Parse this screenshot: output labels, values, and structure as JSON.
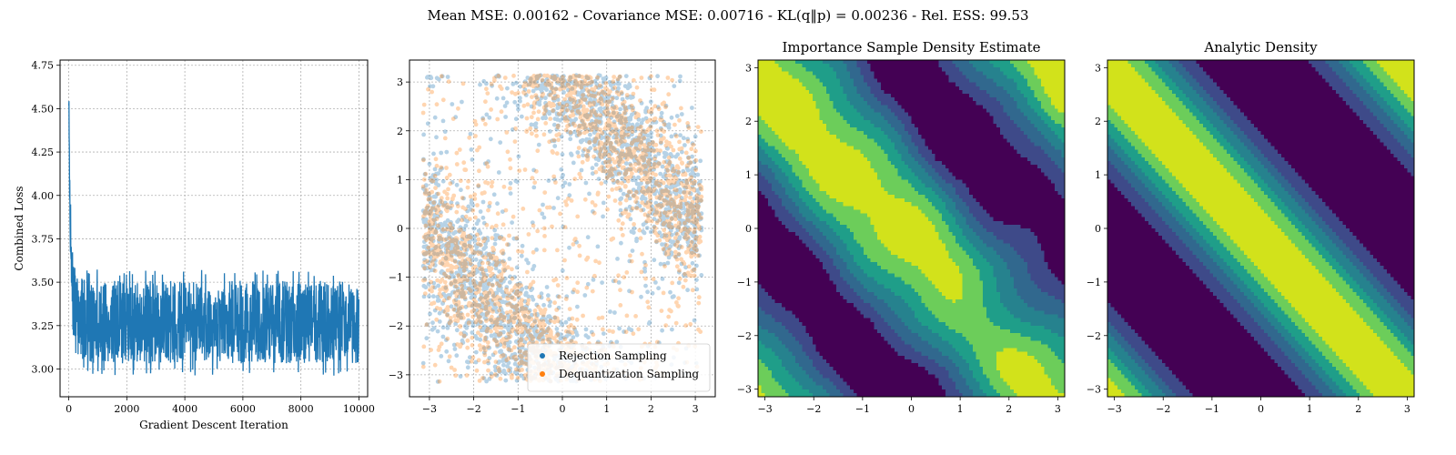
{
  "figure": {
    "suptitle": "Mean MSE: 0.00162 - Covariance MSE: 0.00716 - KL(q‖p) = 0.00236 - Rel. ESS: 99.53"
  },
  "colors": {
    "loss_line": "#1f77b4",
    "rejection": "#1f77b4",
    "dequantization": "#ff7f0e",
    "viridis": [
      "#440154",
      "#3e4a89",
      "#31688e",
      "#26828e",
      "#1f9e89",
      "#6ccd5a",
      "#d2e21b"
    ]
  },
  "chart_data": [
    {
      "type": "line",
      "title": "",
      "xlabel": "Gradient Descent Iteration",
      "ylabel": "Combined Loss",
      "xlim": [
        -300,
        10300
      ],
      "ylim": [
        2.84,
        4.78
      ],
      "xticks": [
        0,
        2000,
        4000,
        6000,
        8000,
        10000
      ],
      "xtick_labels": [
        "0",
        "2000",
        "4000",
        "6000",
        "8000",
        "10000"
      ],
      "yticks": [
        3.0,
        3.25,
        3.5,
        3.75,
        4.0,
        4.25,
        4.5,
        4.75
      ],
      "ytick_labels": [
        "3.00",
        "3.25",
        "3.50",
        "3.75",
        "4.00",
        "4.25",
        "4.50",
        "4.75"
      ],
      "grid": true,
      "series": [
        {
          "x": [
            0,
            20,
            40,
            60,
            80,
            100,
            150,
            200,
            300,
            500,
            1000,
            2000,
            3000,
            4000,
            5000,
            6000,
            7000,
            8000,
            9000,
            10000
          ],
          "y": [
            4.58,
            4.2,
            3.95,
            3.75,
            3.6,
            3.5,
            3.4,
            3.35,
            3.3,
            3.28,
            3.27,
            3.27,
            3.27,
            3.27,
            3.27,
            3.27,
            3.27,
            3.27,
            3.27,
            3.27
          ],
          "noise_band": [
            3.0,
            3.56
          ]
        }
      ]
    },
    {
      "type": "scatter",
      "title": "",
      "xlabel": "",
      "ylabel": "",
      "xlim": [
        -3.45,
        3.45
      ],
      "ylim": [
        -3.45,
        3.45
      ],
      "xticks": [
        -3,
        -2,
        -1,
        0,
        1,
        2,
        3
      ],
      "yticks": [
        -3,
        -2,
        -1,
        0,
        1,
        2,
        3
      ],
      "tick_labels": [
        "−3",
        "−2",
        "−1",
        "0",
        "1",
        "2",
        "3"
      ],
      "grid": true,
      "legend_position": "lower-right",
      "series": [
        {
          "name": "Rejection Sampling",
          "sample_count": 5000
        },
        {
          "name": "Dequantization Sampling",
          "sample_count": 5000
        }
      ]
    },
    {
      "type": "heatmap",
      "title": "Importance Sample Density Estimate",
      "xlim": [
        -3.14159,
        3.14159
      ],
      "ylim": [
        -3.14159,
        3.14159
      ],
      "xticks": [
        -3,
        -2,
        -1,
        0,
        1,
        2,
        3
      ],
      "yticks": [
        -3,
        -2,
        -1,
        0,
        1,
        2,
        3
      ],
      "tick_labels": [
        "−3",
        "−2",
        "−1",
        "0",
        "1",
        "2",
        "3"
      ]
    },
    {
      "type": "heatmap",
      "title": "Analytic Density",
      "xlim": [
        -3.14159,
        3.14159
      ],
      "ylim": [
        -3.14159,
        3.14159
      ],
      "xticks": [
        -3,
        -2,
        -1,
        0,
        1,
        2,
        3
      ],
      "yticks": [
        -3,
        -2,
        -1,
        0,
        1,
        2,
        3
      ],
      "tick_labels": [
        "−3",
        "−2",
        "−1",
        "0",
        "1",
        "2",
        "3"
      ]
    }
  ]
}
